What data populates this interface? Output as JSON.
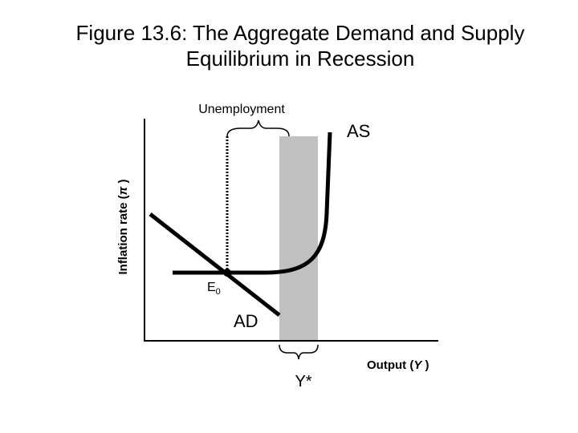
{
  "header": {
    "title_lines": [
      "Figure 13.6: The Aggregate Demand and Supply",
      "Equilibrium in Recession"
    ]
  },
  "diagram": {
    "unemployment_label": "Unemployment",
    "as_label": "AS",
    "ad_label": "AD",
    "equilibrium_label": {
      "letter": "E",
      "subscript": "0"
    },
    "y_axis_label": {
      "before": "Inflation rate (",
      "symbol": "π",
      "after": " )"
    },
    "x_axis_label": {
      "before": "Output (",
      "symbol": "Y",
      "after": " )"
    },
    "potential_output_label": "Y*"
  }
}
